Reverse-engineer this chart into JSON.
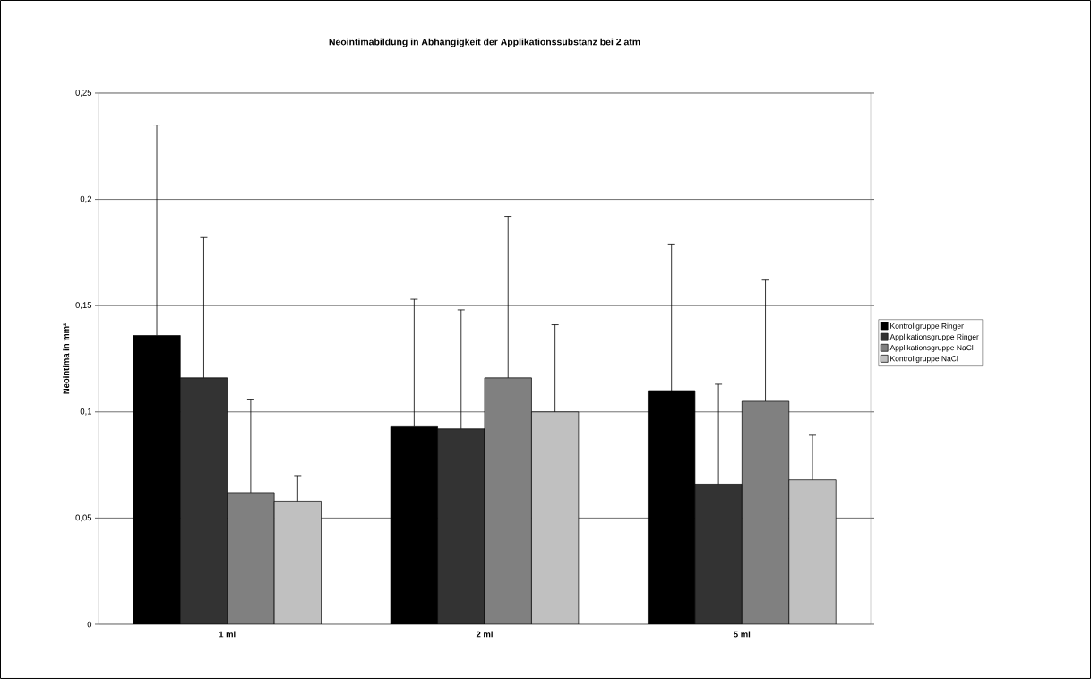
{
  "chart_data": {
    "type": "bar",
    "title": "Neointimabildung in Abhängigkeit der Applikationssubstanz bei 2 atm",
    "ylabel": "Neointima in mm²",
    "categories": [
      "1 ml",
      "2 ml",
      "5 ml"
    ],
    "series": [
      {
        "name": "Kontrollgruppe Ringer",
        "color": "#000000",
        "values": [
          0.136,
          0.093,
          0.11
        ],
        "errors": [
          [
            0.136,
            0.235
          ],
          [
            0.093,
            0.153
          ],
          [
            0.11,
            0.179
          ]
        ]
      },
      {
        "name": "Applikationsgruppe Ringer",
        "color": "#333333",
        "values": [
          0.116,
          0.092,
          0.066
        ],
        "errors": [
          [
            0.116,
            0.182
          ],
          [
            0.092,
            0.148
          ],
          [
            0.066,
            0.113
          ]
        ]
      },
      {
        "name": "Applikationsgruppe NaCl",
        "color": "#808080",
        "values": [
          0.062,
          0.116,
          0.105
        ],
        "errors": [
          [
            0.062,
            0.106
          ],
          [
            0.116,
            0.192
          ],
          [
            0.105,
            0.162
          ]
        ]
      },
      {
        "name": "Kontrollgruppe NaCl",
        "color": "#c0c0c0",
        "values": [
          0.058,
          0.1,
          0.068
        ],
        "errors": [
          [
            0.058,
            0.07
          ],
          [
            0.1,
            0.141
          ],
          [
            0.068,
            0.089
          ]
        ]
      }
    ],
    "ylim": [
      0,
      0.25
    ],
    "yticks": [
      0,
      {
        "value": 0.05,
        "label": "0,05"
      },
      {
        "value": 0.1,
        "label": "0,1"
      },
      {
        "value": 0.15,
        "label": "0,15"
      },
      {
        "value": 0.2,
        "label": "0,2"
      },
      {
        "value": 0.25,
        "label": "0,25"
      }
    ],
    "grid": "y",
    "legend": "right"
  }
}
